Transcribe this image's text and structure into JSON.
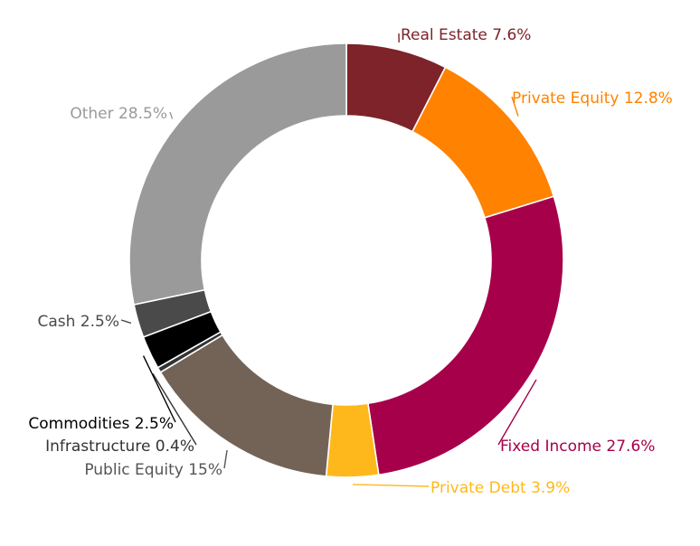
{
  "chart_data": {
    "type": "pie",
    "variant": "donut",
    "title": "",
    "start_angle_deg": 0,
    "direction": "clockwise",
    "slices": [
      {
        "name": "Real Estate",
        "value": 7.6,
        "label": "Real Estate 7.6%",
        "color": "#7d2329",
        "label_color": "#7d2329"
      },
      {
        "name": "Private Equity",
        "value": 12.8,
        "label": "Private Equity 12.8%",
        "color": "#ff8200",
        "label_color": "#ff8200"
      },
      {
        "name": "Fixed Income",
        "value": 27.6,
        "label": "Fixed Income 27.6%",
        "color": "#a6004b",
        "label_color": "#a6004b"
      },
      {
        "name": "Private Debt",
        "value": 3.9,
        "label": "Private Debt 3.9%",
        "color": "#ffb81c",
        "label_color": "#ffb81c"
      },
      {
        "name": "Public Equity",
        "value": 15,
        "label": "Public Equity 15%",
        "color": "#736357",
        "label_color": "#555555"
      },
      {
        "name": "Infrastructure",
        "value": 0.4,
        "label": "Infrastructure 0.4%",
        "color": "#333333",
        "label_color": "#333333"
      },
      {
        "name": "Commodities",
        "value": 2.5,
        "label": "Commodities 2.5%",
        "color": "#000000",
        "label_color": "#000000"
      },
      {
        "name": "Cash",
        "value": 2.5,
        "label": "Cash 2.5%",
        "color": "#4a4a4a",
        "label_color": "#4a4a4a"
      },
      {
        "name": "Other",
        "value": 28.5,
        "label": "Other 28.5%",
        "color": "#9a9a9a",
        "label_color": "#9a9a9a"
      }
    ]
  }
}
